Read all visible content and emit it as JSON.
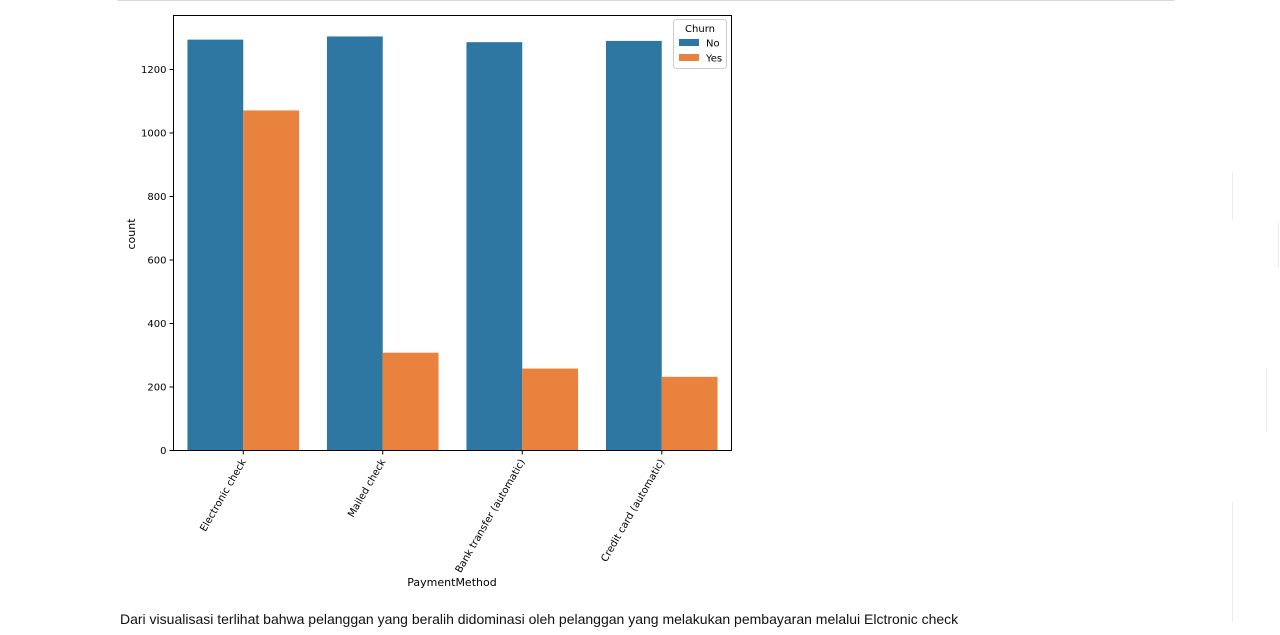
{
  "chart_data": {
    "type": "bar",
    "title": "",
    "xlabel": "PaymentMethod",
    "ylabel": "count",
    "categories": [
      "Electronic check",
      "Mailed check",
      "Bank transfer (automatic)",
      "Credit card (automatic)"
    ],
    "series": [
      {
        "name": "No",
        "color": "#2e77a2",
        "values": [
          1294,
          1304,
          1286,
          1290
        ]
      },
      {
        "name": "Yes",
        "color": "#e8823c",
        "values": [
          1071,
          308,
          258,
          232
        ]
      }
    ],
    "ylim": [
      0,
      1370
    ],
    "yticks": [
      0,
      200,
      400,
      600,
      800,
      1000,
      1200
    ],
    "grid": false,
    "legend": {
      "title": "Churn",
      "placement": "top-right"
    }
  },
  "notes": {
    "caption": "Dari visualisasi terlihat bahwa pelanggan yang beralih didominasi oleh pelanggan yang melakukan pembayaran melalui Elctronic check"
  }
}
